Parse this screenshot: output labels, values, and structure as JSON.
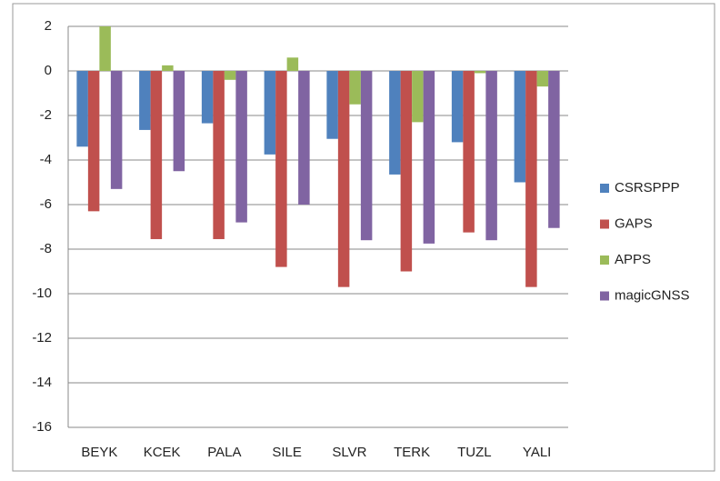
{
  "chart_data": {
    "type": "bar",
    "categories": [
      "BEYK",
      "KCEK",
      "PALA",
      "SILE",
      "SLVR",
      "TERK",
      "TUZL",
      "YALI"
    ],
    "series": [
      {
        "name": "CSRSPPP",
        "color": "#4f81bd",
        "values": [
          -3.4,
          -2.65,
          -2.35,
          -3.75,
          -3.05,
          -4.65,
          -3.2,
          -5.0
        ]
      },
      {
        "name": "GAPS",
        "color": "#c0504d",
        "values": [
          -6.3,
          -7.55,
          -7.55,
          -8.8,
          -9.7,
          -9.0,
          -7.25,
          -9.7
        ]
      },
      {
        "name": "APPS",
        "color": "#9bbb59",
        "values": [
          2.0,
          0.25,
          -0.4,
          0.6,
          -1.5,
          -2.3,
          -0.1,
          -0.7
        ]
      },
      {
        "name": "magicGNSS",
        "color": "#8064a2",
        "values": [
          -5.3,
          -4.5,
          -6.8,
          -6.0,
          -7.6,
          -7.75,
          -7.6,
          -7.05
        ]
      }
    ],
    "ylim": [
      -16,
      2
    ],
    "yticks": [
      -16,
      -14,
      -12,
      -10,
      -8,
      -6,
      -4,
      -2,
      0,
      2
    ],
    "grid": true,
    "legend": "right"
  }
}
